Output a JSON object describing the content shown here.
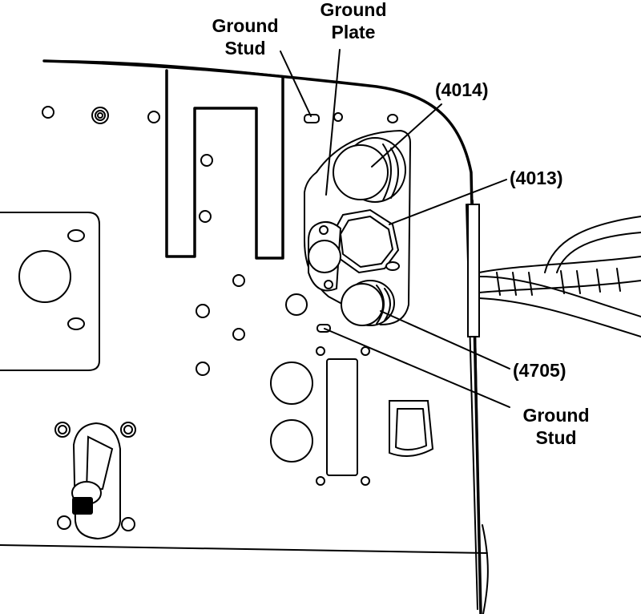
{
  "callouts": {
    "ground_stud_top": {
      "line1": "Ground",
      "line2": "Stud"
    },
    "ground_plate": {
      "line1": "Ground",
      "line2": "Plate"
    },
    "part_4014": "(4014)",
    "part_4013": "(4013)",
    "part_4705": "(4705)",
    "ground_stud_bottom": {
      "line1": "Ground",
      "line2": "Stud"
    }
  },
  "colors": {
    "ink": "#000000",
    "paper": "#ffffff"
  }
}
